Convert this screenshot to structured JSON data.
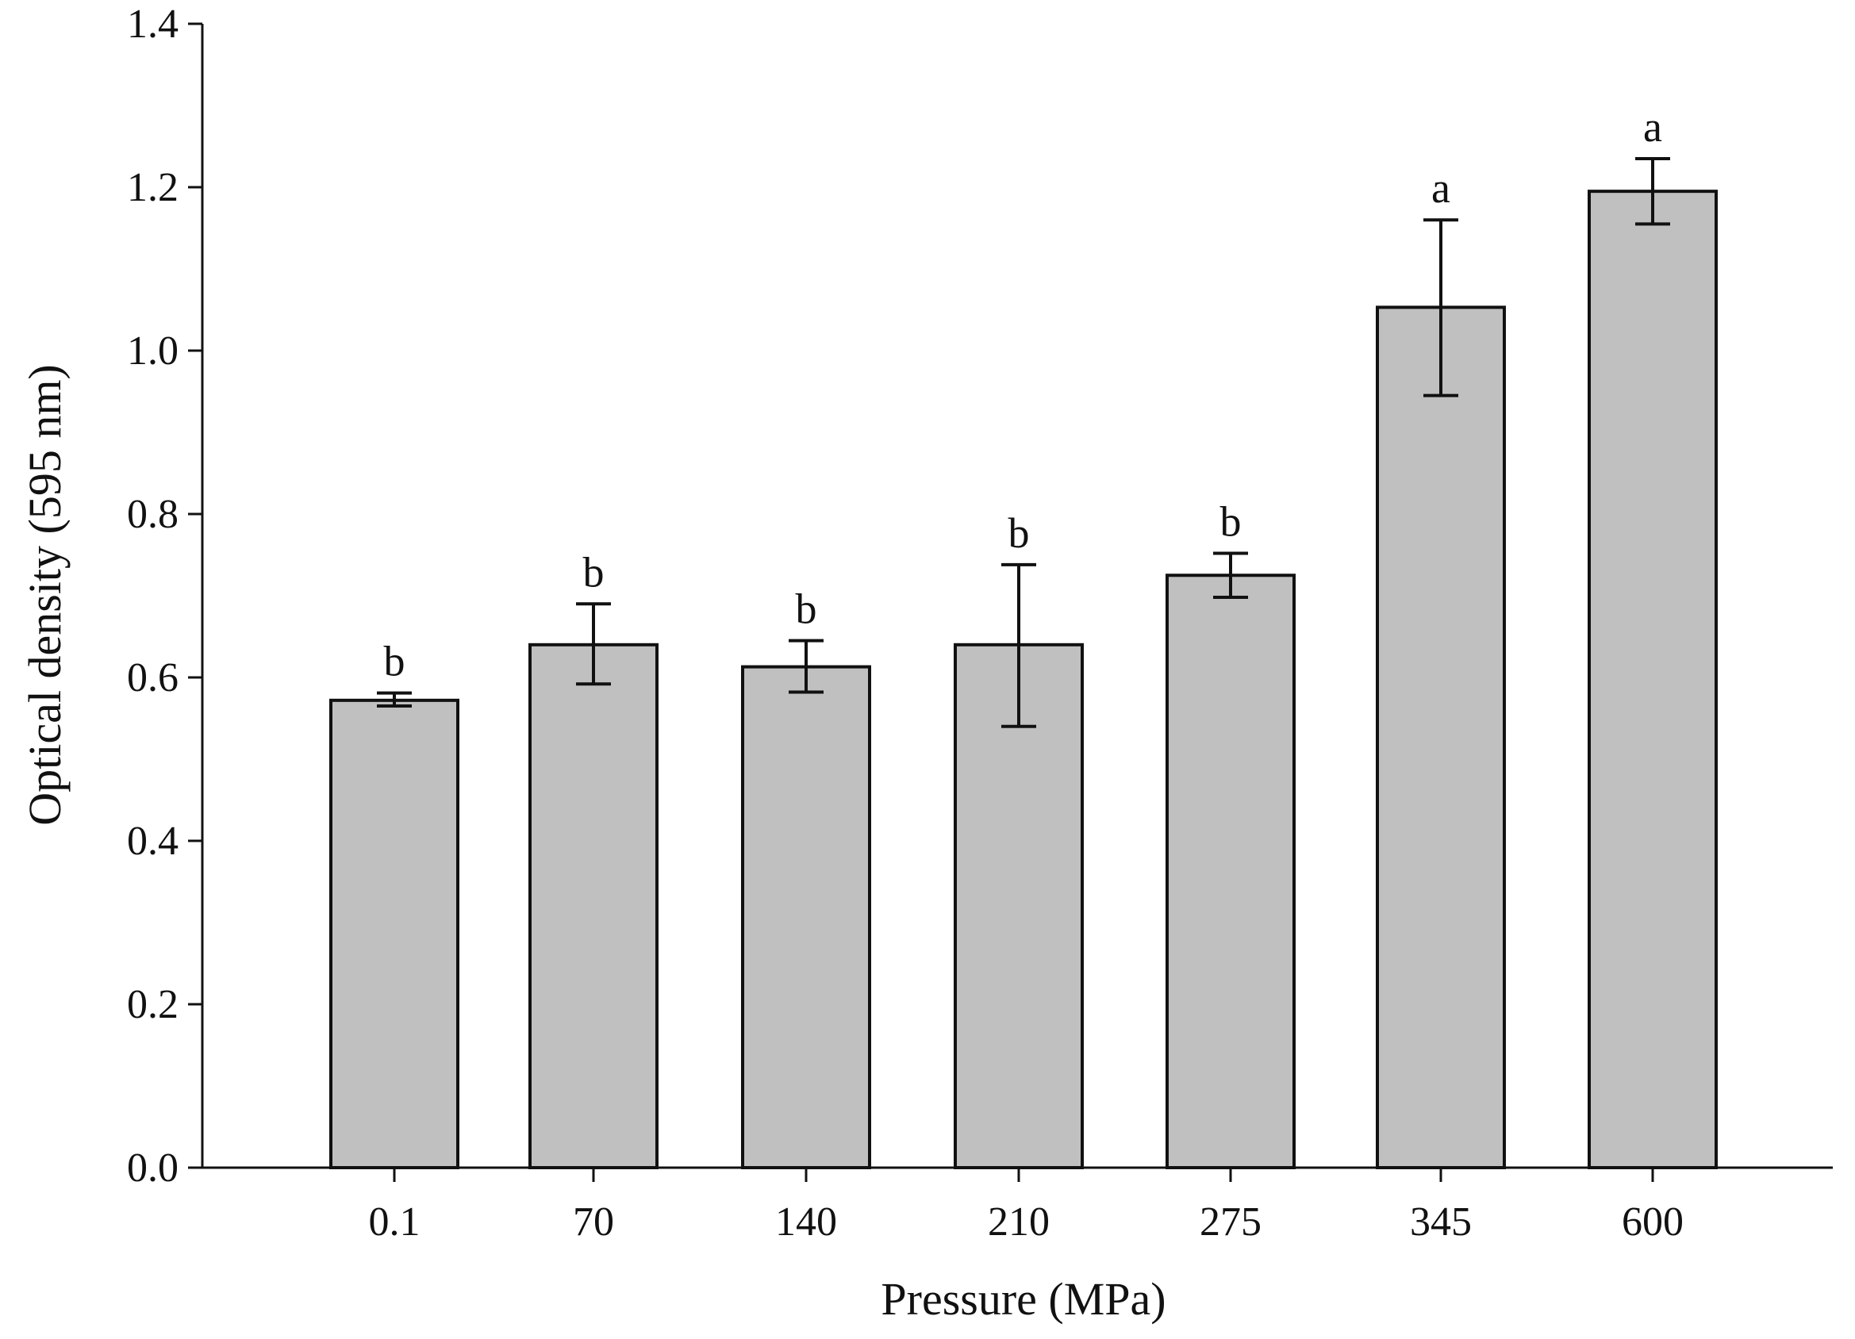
{
  "chart_data": {
    "type": "bar",
    "title": "",
    "xlabel": "Pressure (MPa)",
    "ylabel": "Optical density (595 nm)",
    "categories": [
      "0.1",
      "70",
      "140",
      "210",
      "275",
      "345",
      "600"
    ],
    "values": [
      0.572,
      0.64,
      0.613,
      0.64,
      0.725,
      1.053,
      1.195
    ],
    "error_low": [
      0.565,
      0.592,
      0.582,
      0.54,
      0.698,
      0.945,
      1.155
    ],
    "error_high": [
      0.581,
      0.69,
      0.645,
      0.738,
      0.752,
      1.16,
      1.235
    ],
    "significance_labels": [
      "b",
      "b",
      "b",
      "b",
      "b",
      "a",
      "a"
    ],
    "ylim": [
      0.0,
      1.4
    ],
    "yticks": [
      "0.0",
      "0.2",
      "0.4",
      "0.6",
      "0.8",
      "1.0",
      "1.2",
      "1.4"
    ],
    "grid": false,
    "legend": "none",
    "colors": {
      "bar_fill": "#c0c0c0",
      "bar_stroke": "#111111",
      "axis": "#111111"
    }
  }
}
